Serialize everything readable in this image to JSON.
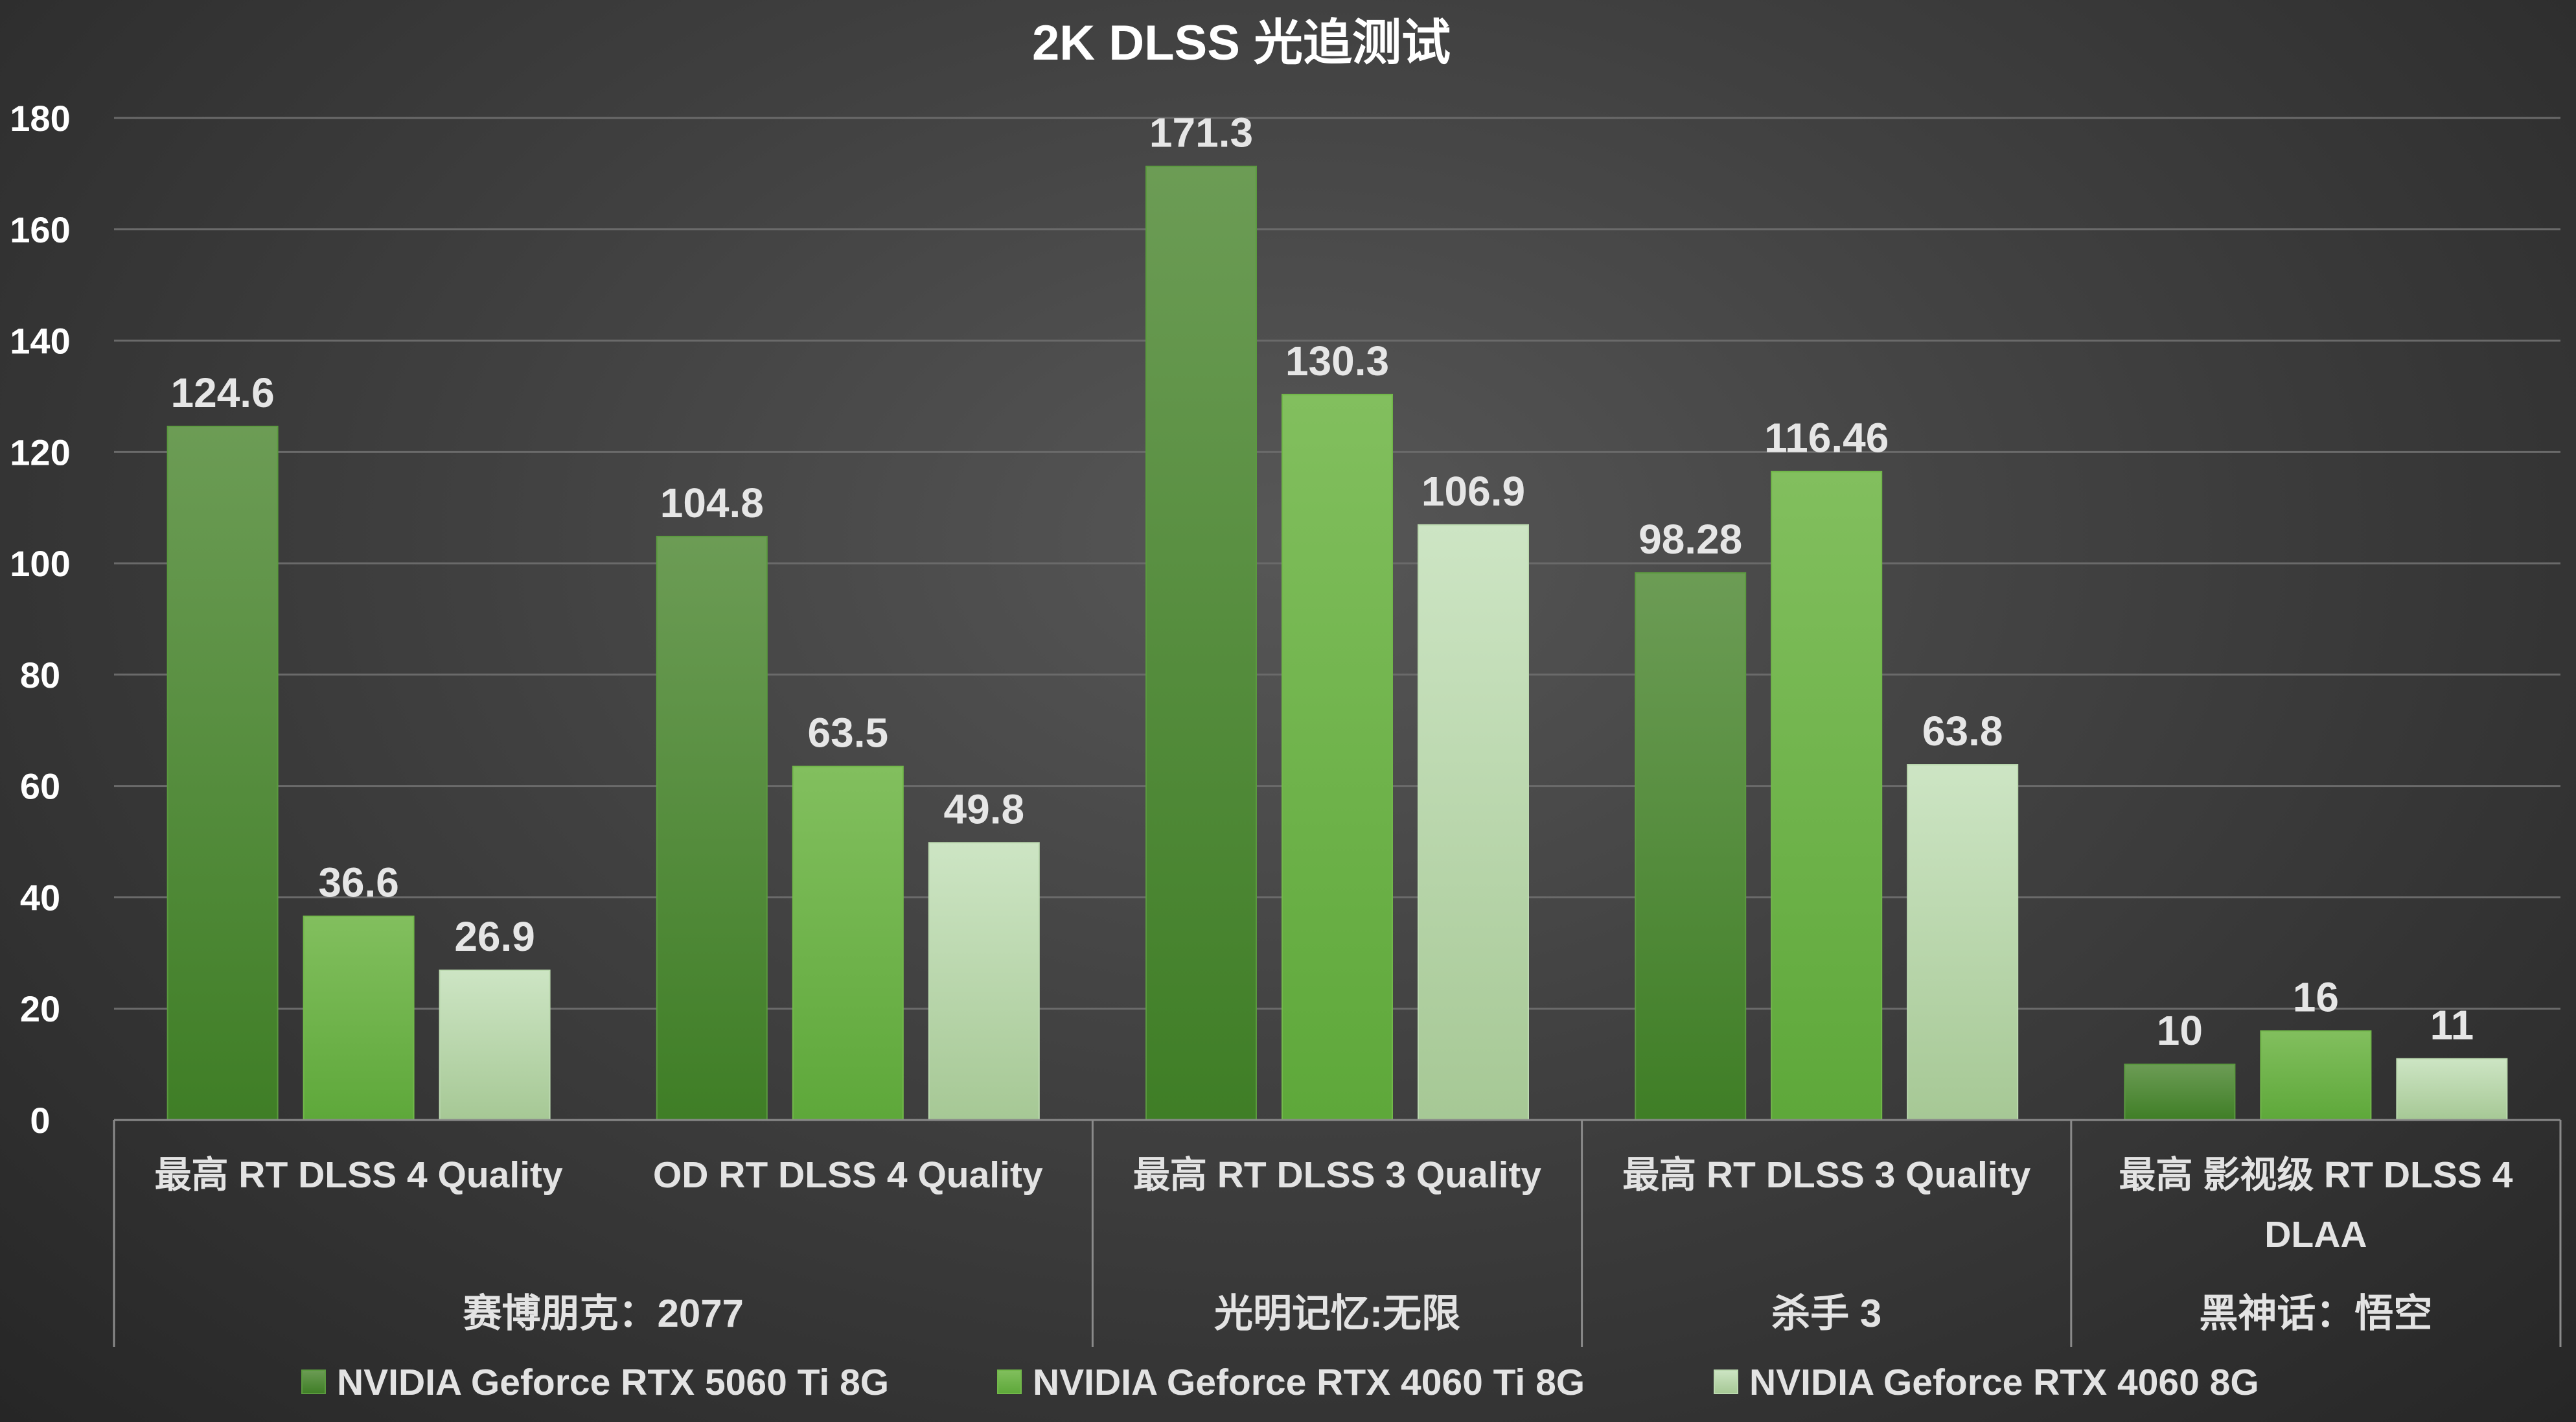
{
  "chart_data": {
    "type": "bar",
    "title": "2K DLSS 光追测试",
    "ylim": [
      0,
      180
    ],
    "yticks": [
      0,
      20,
      40,
      60,
      80,
      100,
      120,
      140,
      160,
      180
    ],
    "grid": true,
    "legend_position": "bottom",
    "groups": [
      {
        "label": "赛博朋克：2077",
        "span": 2
      },
      {
        "label": "光明记忆:无限",
        "span": 1
      },
      {
        "label": "杀手 3",
        "span": 1
      },
      {
        "label": "黑神话：悟空",
        "span": 1
      }
    ],
    "categories": [
      [
        "最高 RT DLSS 4 Quality"
      ],
      [
        "OD RT DLSS 4 Quality"
      ],
      [
        "最高 RT DLSS 3 Quality"
      ],
      [
        "最高 RT DLSS 3 Quality"
      ],
      [
        "最高 影视级 RT DLSS 4",
        "DLAA"
      ]
    ],
    "series": [
      {
        "name": "NVIDIA Geforce RTX 5060 Ti 8G",
        "color": "#5b9a3f",
        "values": [
          124.6,
          104.8,
          171.3,
          98.28,
          10
        ],
        "labels": [
          "124.6",
          "104.8",
          "171.3",
          "98.28",
          "10"
        ]
      },
      {
        "name": "NVIDIA Geforce RTX 4060 Ti 8G",
        "color": "#72b84a",
        "values": [
          36.6,
          63.5,
          130.3,
          116.46,
          16
        ],
        "labels": [
          "36.6",
          "63.5",
          "130.3",
          "116.46",
          "16"
        ]
      },
      {
        "name": "NVIDIA Geforce RTX 4060 8G",
        "color": "#bcdab0",
        "values": [
          26.9,
          49.8,
          106.9,
          63.8,
          11
        ],
        "labels": [
          "26.9",
          "49.8",
          "106.9",
          "63.8",
          "11"
        ]
      }
    ]
  }
}
